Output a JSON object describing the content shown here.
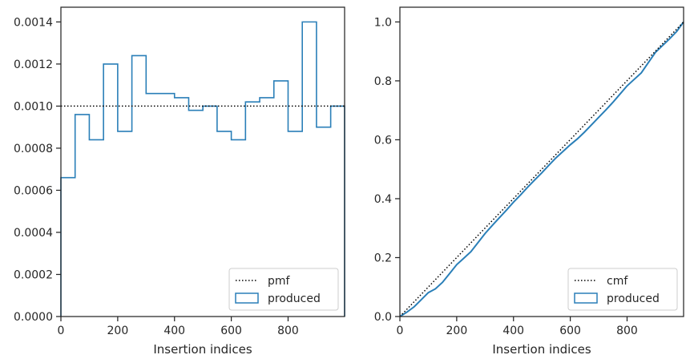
{
  "chart_data": [
    {
      "type": "histogram",
      "xlabel": "Insertion indices",
      "ylabel": "",
      "xlim": [
        0,
        999
      ],
      "ylim": [
        0,
        0.00147
      ],
      "xticks": [
        0,
        200,
        400,
        600,
        800
      ],
      "xtick_labels": [
        "0",
        "200",
        "400",
        "600",
        "800"
      ],
      "yticks": [
        0,
        0.0002,
        0.0004,
        0.0006,
        0.0008,
        0.001,
        0.0012,
        0.0014
      ],
      "ytick_labels": [
        "0.0000",
        "0.0002",
        "0.0004",
        "0.0006",
        "0.0008",
        "0.0010",
        "0.0012",
        "0.0014"
      ],
      "bin_edges": [
        0,
        50,
        100,
        150,
        200,
        250,
        300,
        350,
        400,
        450,
        500,
        550,
        600,
        650,
        700,
        750,
        800,
        850,
        900,
        950,
        999
      ],
      "series": [
        {
          "name": "produced",
          "style": "step",
          "color": "#2a7fb8",
          "values": [
            0.00066,
            0.00096,
            0.00084,
            0.0012,
            0.00088,
            0.00124,
            0.00106,
            0.00106,
            0.00104,
            0.00098,
            0.001,
            0.00088,
            0.00084,
            0.00102,
            0.00104,
            0.00112,
            0.00088,
            0.0014,
            0.0009,
            0.001
          ]
        },
        {
          "name": "pmf",
          "style": "dotted",
          "color": "#000000",
          "values": [
            0.001
          ]
        }
      ],
      "legend": {
        "placement": "lower-right",
        "entries": [
          "pmf",
          "produced"
        ]
      }
    },
    {
      "type": "line",
      "xlabel": "Insertion indices",
      "ylabel": "",
      "xlim": [
        0,
        999
      ],
      "ylim": [
        0,
        1.05
      ],
      "xticks": [
        0,
        200,
        400,
        600,
        800
      ],
      "xtick_labels": [
        "0",
        "200",
        "400",
        "600",
        "800"
      ],
      "yticks": [
        0,
        0.2,
        0.4,
        0.6,
        0.8,
        1
      ],
      "ytick_labels": [
        "0.0",
        "0.2",
        "0.4",
        "0.6",
        "0.8",
        "1.0"
      ],
      "series": [
        {
          "name": "produced",
          "style": "solid",
          "color": "#2a7fb8",
          "x": [
            0,
            25,
            50,
            75,
            100,
            125,
            150,
            175,
            200,
            225,
            250,
            275,
            300,
            325,
            350,
            375,
            400,
            425,
            450,
            475,
            500,
            525,
            550,
            575,
            600,
            625,
            650,
            675,
            700,
            725,
            750,
            775,
            800,
            825,
            850,
            875,
            900,
            925,
            950,
            975,
            999
          ],
          "y": [
            0,
            0.015,
            0.033,
            0.057,
            0.081,
            0.094,
            0.116,
            0.146,
            0.176,
            0.198,
            0.22,
            0.251,
            0.282,
            0.309,
            0.335,
            0.361,
            0.388,
            0.413,
            0.439,
            0.464,
            0.488,
            0.514,
            0.539,
            0.561,
            0.583,
            0.603,
            0.626,
            0.651,
            0.676,
            0.701,
            0.727,
            0.755,
            0.783,
            0.805,
            0.827,
            0.862,
            0.897,
            0.92,
            0.943,
            0.968,
            1.0
          ]
        },
        {
          "name": "cmf",
          "style": "dotted",
          "color": "#000000",
          "x": [
            0,
            999
          ],
          "y": [
            0,
            1.0
          ]
        }
      ],
      "legend": {
        "placement": "lower-right",
        "entries": [
          "cmf",
          "produced"
        ]
      }
    }
  ]
}
